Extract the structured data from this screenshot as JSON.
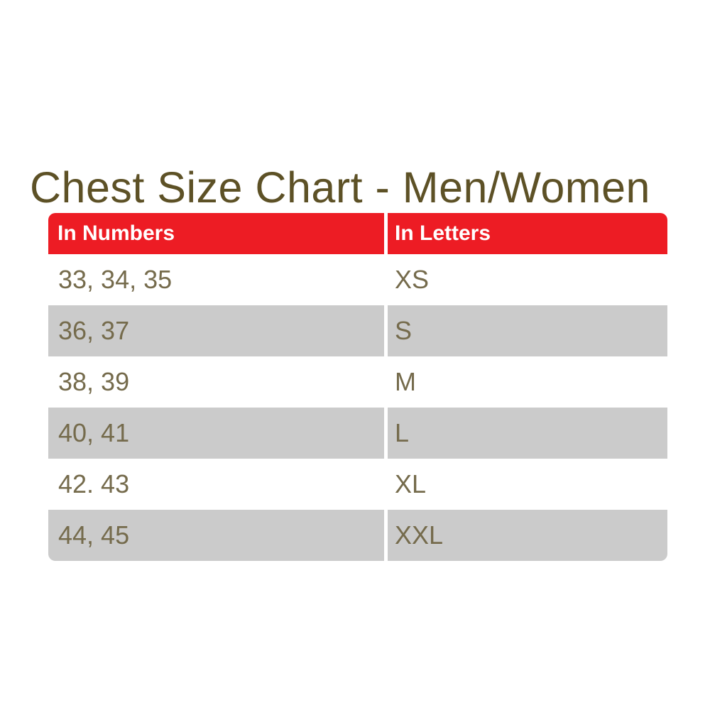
{
  "title": "Chest Size Chart - Men/Women",
  "colors": {
    "header_bg": "#ed1c24",
    "header_text": "#ffffff",
    "alt_row_bg": "#cbcbcb",
    "body_text": "#756b4c",
    "title_text": "#5d5126",
    "page_bg": "#ffffff"
  },
  "table": {
    "headers": {
      "numbers": "In Numbers",
      "letters": "In Letters"
    },
    "rows": [
      {
        "numbers": "33, 34, 35",
        "letters": "XS"
      },
      {
        "numbers": "36, 37",
        "letters": "S"
      },
      {
        "numbers": "38, 39",
        "letters": "M"
      },
      {
        "numbers": "40, 41",
        "letters": "L"
      },
      {
        "numbers": "42. 43",
        "letters": "XL"
      },
      {
        "numbers": "44, 45",
        "letters": "XXL"
      }
    ]
  },
  "chart_data": {
    "type": "table",
    "title": "Chest Size Chart - Men/Women",
    "columns": [
      "In Numbers",
      "In Letters"
    ],
    "rows": [
      [
        "33, 34, 35",
        "XS"
      ],
      [
        "36, 37",
        "S"
      ],
      [
        "38, 39",
        "M"
      ],
      [
        "40, 41",
        "L"
      ],
      [
        "42. 43",
        "XL"
      ],
      [
        "44, 45",
        "XXL"
      ]
    ],
    "layout": {
      "header_style": "red band, white bold text, rounded top corners",
      "zebra_striping": "white / light gray alternating, rounded bottom corners",
      "column_divider": "thin white vertical gap"
    }
  }
}
